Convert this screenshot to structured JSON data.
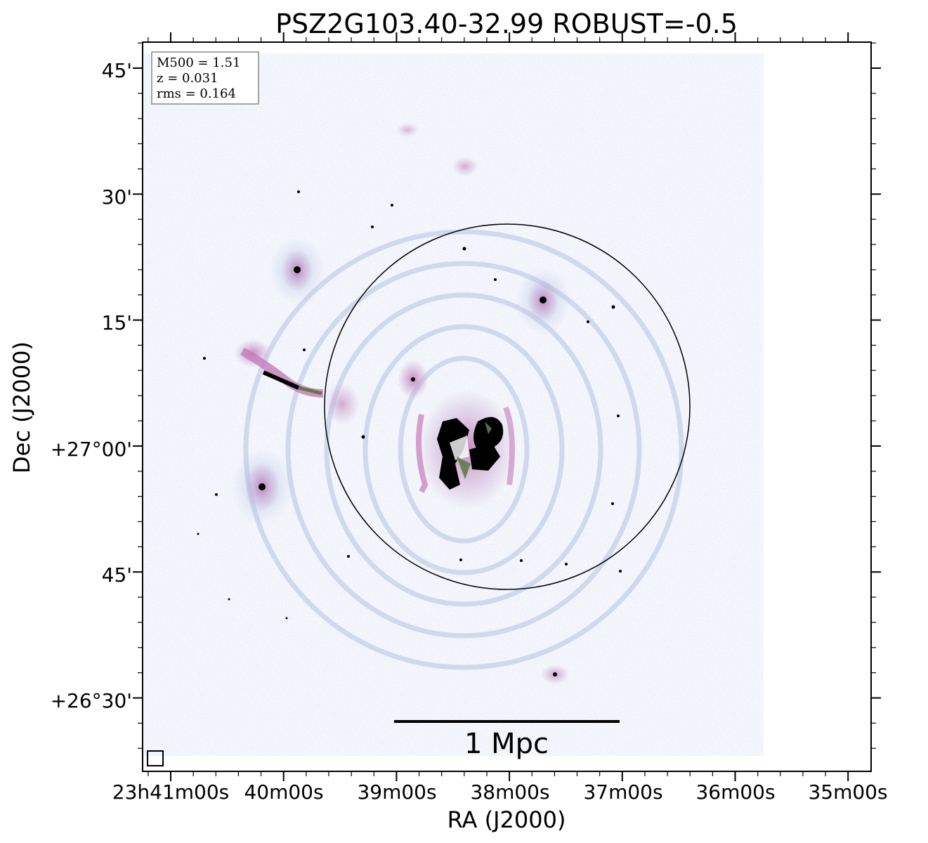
{
  "title": "PSZ2G103.40-32.99 ROBUST=-0.5",
  "axes": {
    "x_label": "RA (J2000)",
    "y_label": "Dec (J2000)",
    "x_ticks": [
      "23h41m00s",
      "40m00s",
      "39m00s",
      "38m00s",
      "37m00s",
      "36m00s",
      "35m00s"
    ],
    "y_ticks": [
      "45'",
      "30'",
      "15'",
      "+27°00'",
      "45'",
      "+26°30'"
    ]
  },
  "info_box": {
    "line1": "M500 = 1.51",
    "line2": "z = 0.031",
    "line3": "rms = 0.164"
  },
  "scalebar": {
    "label": "1 Mpc"
  },
  "colors": {
    "frame": "#000000",
    "noise_blue": "#9fb2d9",
    "emission_pink": "#c47ab8",
    "emission_green": "#5f7a4a",
    "emission_dark": "#000000"
  }
}
